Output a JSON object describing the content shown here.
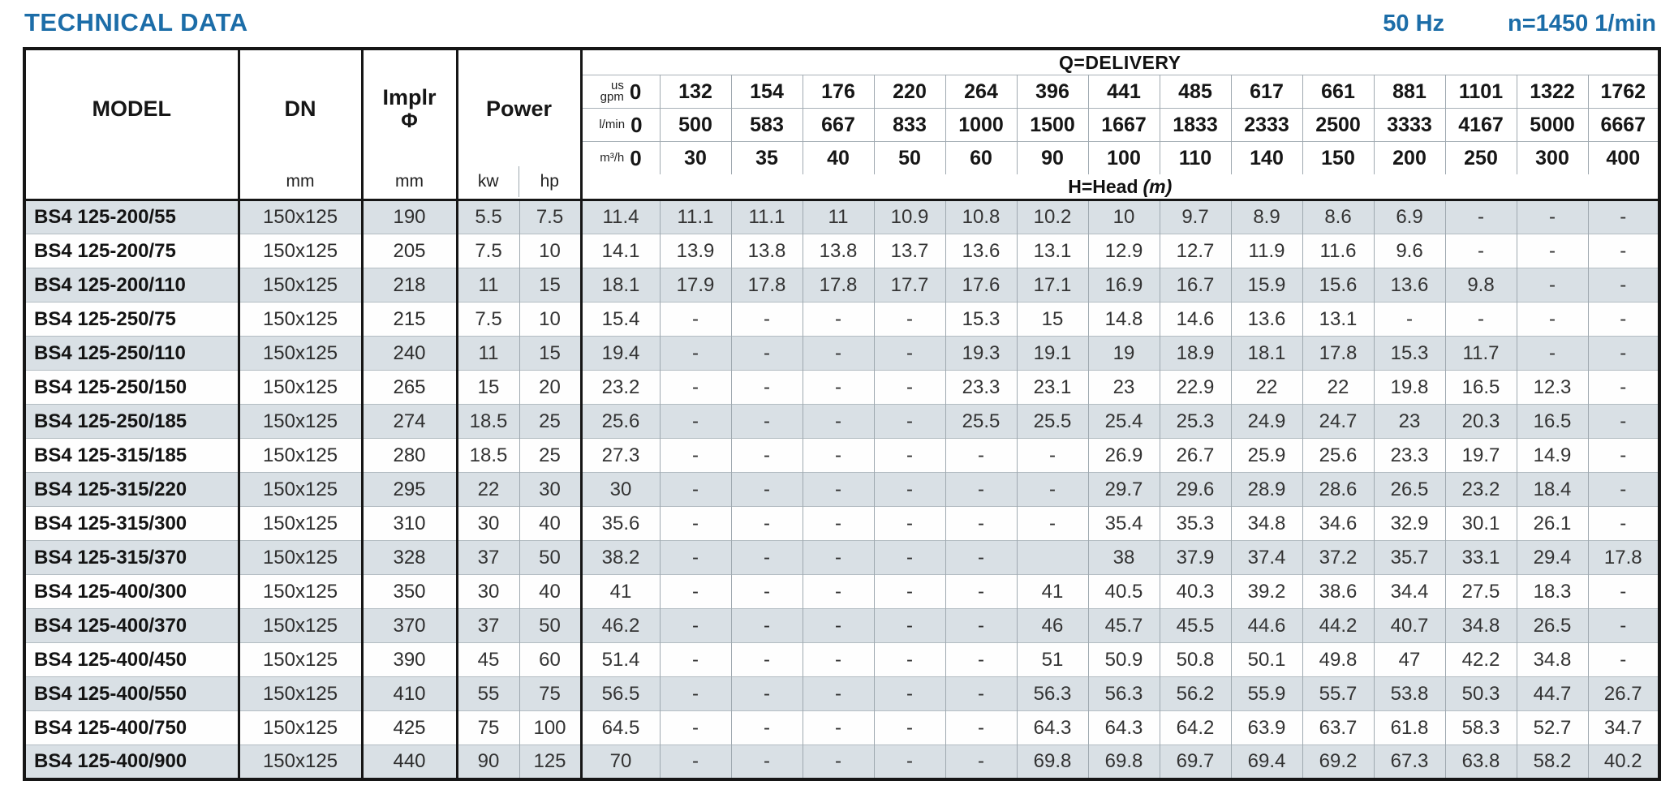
{
  "title": "TECHNICAL DATA",
  "frequency": "50 Hz",
  "speed": "n=1450 1/min",
  "table": {
    "headers": {
      "model": "MODEL",
      "dn": "DN",
      "dn_unit": "mm",
      "implr_line1": "Implr",
      "implr_line2": "Φ",
      "implr_unit": "mm",
      "power": "Power",
      "power_unit_kw": "kw",
      "power_unit_hp": "hp",
      "delivery_title": "Q=DELIVERY",
      "head_title": "H=Head",
      "head_title_unit": "(m)",
      "row_units": [
        {
          "line1": "us",
          "line2": "gpm"
        },
        {
          "line1": "l/min"
        },
        {
          "line1": "m³/h"
        }
      ],
      "gpm": [
        "0",
        "132",
        "154",
        "176",
        "220",
        "264",
        "396",
        "441",
        "485",
        "617",
        "661",
        "881",
        "1101",
        "1322",
        "1762"
      ],
      "lmin": [
        "0",
        "500",
        "583",
        "667",
        "833",
        "1000",
        "1500",
        "1667",
        "1833",
        "2333",
        "2500",
        "3333",
        "4167",
        "5000",
        "6667"
      ],
      "m3h": [
        "0",
        "30",
        "35",
        "40",
        "50",
        "60",
        "90",
        "100",
        "110",
        "140",
        "150",
        "200",
        "250",
        "300",
        "400"
      ]
    },
    "rows": [
      {
        "model": "BS4 125-200/55",
        "dn": "150x125",
        "implr": "190",
        "kw": "5.5",
        "hp": "7.5",
        "head": [
          "11.4",
          "11.1",
          "11.1",
          "11",
          "10.9",
          "10.8",
          "10.2",
          "10",
          "9.7",
          "8.9",
          "8.6",
          "6.9",
          "-",
          "-",
          "-"
        ]
      },
      {
        "model": "BS4 125-200/75",
        "dn": "150x125",
        "implr": "205",
        "kw": "7.5",
        "hp": "10",
        "head": [
          "14.1",
          "13.9",
          "13.8",
          "13.8",
          "13.7",
          "13.6",
          "13.1",
          "12.9",
          "12.7",
          "11.9",
          "11.6",
          "9.6",
          "-",
          "-",
          "-"
        ]
      },
      {
        "model": "BS4 125-200/110",
        "dn": "150x125",
        "implr": "218",
        "kw": "11",
        "hp": "15",
        "head": [
          "18.1",
          "17.9",
          "17.8",
          "17.8",
          "17.7",
          "17.6",
          "17.1",
          "16.9",
          "16.7",
          "15.9",
          "15.6",
          "13.6",
          "9.8",
          "-",
          "-"
        ]
      },
      {
        "model": "BS4 125-250/75",
        "dn": "150x125",
        "implr": "215",
        "kw": "7.5",
        "hp": "10",
        "head": [
          "15.4",
          "-",
          "-",
          "-",
          "-",
          "15.3",
          "15",
          "14.8",
          "14.6",
          "13.6",
          "13.1",
          "-",
          "-",
          "-",
          "-"
        ]
      },
      {
        "model": "BS4 125-250/110",
        "dn": "150x125",
        "implr": "240",
        "kw": "11",
        "hp": "15",
        "head": [
          "19.4",
          "-",
          "-",
          "-",
          "-",
          "19.3",
          "19.1",
          "19",
          "18.9",
          "18.1",
          "17.8",
          "15.3",
          "11.7",
          "-",
          "-"
        ]
      },
      {
        "model": "BS4 125-250/150",
        "dn": "150x125",
        "implr": "265",
        "kw": "15",
        "hp": "20",
        "head": [
          "23.2",
          "-",
          "-",
          "-",
          "-",
          "23.3",
          "23.1",
          "23",
          "22.9",
          "22",
          "22",
          "19.8",
          "16.5",
          "12.3",
          "-"
        ]
      },
      {
        "model": "BS4 125-250/185",
        "dn": "150x125",
        "implr": "274",
        "kw": "18.5",
        "hp": "25",
        "head": [
          "25.6",
          "-",
          "-",
          "-",
          "-",
          "25.5",
          "25.5",
          "25.4",
          "25.3",
          "24.9",
          "24.7",
          "23",
          "20.3",
          "16.5",
          "-"
        ]
      },
      {
        "model": "BS4 125-315/185",
        "dn": "150x125",
        "implr": "280",
        "kw": "18.5",
        "hp": "25",
        "head": [
          "27.3",
          "-",
          "-",
          "-",
          "-",
          "-",
          "-",
          "26.9",
          "26.7",
          "25.9",
          "25.6",
          "23.3",
          "19.7",
          "14.9",
          "-"
        ]
      },
      {
        "model": "BS4 125-315/220",
        "dn": "150x125",
        "implr": "295",
        "kw": "22",
        "hp": "30",
        "head": [
          "30",
          "-",
          "-",
          "-",
          "-",
          "-",
          "-",
          "29.7",
          "29.6",
          "28.9",
          "28.6",
          "26.5",
          "23.2",
          "18.4",
          "-"
        ]
      },
      {
        "model": "BS4 125-315/300",
        "dn": "150x125",
        "implr": "310",
        "kw": "30",
        "hp": "40",
        "head": [
          "35.6",
          "-",
          "-",
          "-",
          "-",
          "-",
          "-",
          "35.4",
          "35.3",
          "34.8",
          "34.6",
          "32.9",
          "30.1",
          "26.1",
          "-"
        ]
      },
      {
        "model": "BS4 125-315/370",
        "dn": "150x125",
        "implr": "328",
        "kw": "37",
        "hp": "50",
        "head": [
          "38.2",
          "-",
          "-",
          "-",
          "-",
          "-",
          "",
          "38",
          "37.9",
          "37.4",
          "37.2",
          "35.7",
          "33.1",
          "29.4",
          "17.8"
        ]
      },
      {
        "model": "BS4 125-400/300",
        "dn": "150x125",
        "implr": "350",
        "kw": "30",
        "hp": "40",
        "head": [
          "41",
          "-",
          "-",
          "-",
          "-",
          "-",
          "41",
          "40.5",
          "40.3",
          "39.2",
          "38.6",
          "34.4",
          "27.5",
          "18.3",
          "-"
        ]
      },
      {
        "model": "BS4 125-400/370",
        "dn": "150x125",
        "implr": "370",
        "kw": "37",
        "hp": "50",
        "head": [
          "46.2",
          "-",
          "-",
          "-",
          "-",
          "-",
          "46",
          "45.7",
          "45.5",
          "44.6",
          "44.2",
          "40.7",
          "34.8",
          "26.5",
          "-"
        ]
      },
      {
        "model": "BS4 125-400/450",
        "dn": "150x125",
        "implr": "390",
        "kw": "45",
        "hp": "60",
        "head": [
          "51.4",
          "-",
          "-",
          "-",
          "-",
          "-",
          "51",
          "50.9",
          "50.8",
          "50.1",
          "49.8",
          "47",
          "42.2",
          "34.8",
          "-"
        ]
      },
      {
        "model": "BS4 125-400/550",
        "dn": "150x125",
        "implr": "410",
        "kw": "55",
        "hp": "75",
        "head": [
          "56.5",
          "-",
          "-",
          "-",
          "-",
          "-",
          "56.3",
          "56.3",
          "56.2",
          "55.9",
          "55.7",
          "53.8",
          "50.3",
          "44.7",
          "26.7"
        ]
      },
      {
        "model": "BS4 125-400/750",
        "dn": "150x125",
        "implr": "425",
        "kw": "75",
        "hp": "100",
        "head": [
          "64.5",
          "-",
          "-",
          "-",
          "-",
          "-",
          "64.3",
          "64.3",
          "64.2",
          "63.9",
          "63.7",
          "61.8",
          "58.3",
          "52.7",
          "34.7"
        ]
      },
      {
        "model": "BS4 125-400/900",
        "dn": "150x125",
        "implr": "440",
        "kw": "90",
        "hp": "125",
        "head": [
          "70",
          "-",
          "-",
          "-",
          "-",
          "-",
          "69.8",
          "69.8",
          "69.7",
          "69.4",
          "69.2",
          "67.3",
          "63.8",
          "58.2",
          "40.2"
        ]
      }
    ]
  },
  "colors": {
    "accent": "#1c6da8",
    "stripe": "#d9e0e5",
    "border": "#161616"
  }
}
